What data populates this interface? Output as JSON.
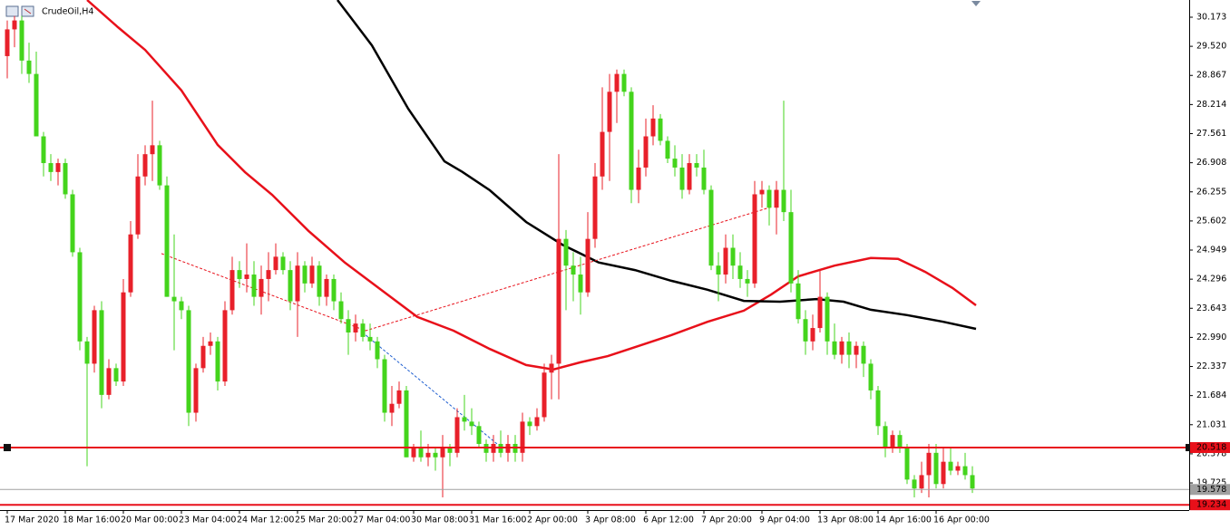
{
  "chart_data": {
    "type": "candlestick",
    "title": "CrudeOil,H4",
    "up_color": "#e8202a",
    "down_color": "#44d41c",
    "ylim": [
      19.116,
      30.559
    ],
    "yticks": [
      30.173,
      {
        "value": 29.52,
        "label": "29.520"
      },
      28.867,
      28.214,
      27.561,
      26.908,
      26.255,
      25.602,
      24.949,
      24.296,
      23.643,
      {
        "value": 22.99,
        "label": "22.990"
      },
      22.337,
      21.684,
      21.031,
      20.378,
      19.725
    ],
    "categories": [
      "17 Mar 2020",
      null,
      null,
      null,
      null,
      null,
      null,
      null,
      "18 Mar 16:00",
      null,
      null,
      null,
      null,
      null,
      null,
      null,
      "20 Mar 00:00",
      null,
      null,
      null,
      null,
      null,
      null,
      null,
      "23 Mar 04:00",
      null,
      null,
      null,
      null,
      null,
      null,
      null,
      "24 Mar 12:00",
      null,
      null,
      null,
      null,
      null,
      null,
      null,
      "25 Mar 20:00",
      null,
      null,
      null,
      null,
      null,
      null,
      null,
      "27 Mar 04:00",
      null,
      null,
      null,
      null,
      null,
      null,
      null,
      "30 Mar 08:00",
      null,
      null,
      null,
      null,
      null,
      null,
      null,
      "31 Mar 16:00",
      null,
      null,
      null,
      null,
      null,
      null,
      null,
      "2 Apr 00:00",
      null,
      null,
      null,
      null,
      null,
      null,
      null,
      "3 Apr 08:00",
      null,
      null,
      null,
      null,
      null,
      null,
      null,
      "6 Apr 12:00",
      null,
      null,
      null,
      null,
      null,
      null,
      null,
      "7 Apr 20:00",
      null,
      null,
      null,
      null,
      null,
      null,
      null,
      "9 Apr 04:00",
      null,
      null,
      null,
      null,
      null,
      null,
      null,
      "13 Apr 08:00",
      null,
      null,
      null,
      null,
      null,
      null,
      null,
      "14 Apr 16:00",
      null,
      null,
      null,
      null,
      null,
      null,
      null,
      "16 Apr 00:00",
      null,
      null,
      null,
      null,
      null
    ],
    "open": [
      29.3,
      29.9,
      30.1,
      29.2,
      28.9,
      27.5,
      26.9,
      26.7,
      26.9,
      26.2,
      24.9,
      22.9,
      22.4,
      23.6,
      21.7,
      22.3,
      22.0,
      24.0,
      25.3,
      26.6,
      27.1,
      27.3,
      26.4,
      23.9,
      23.8,
      23.6,
      21.3,
      22.3,
      22.8,
      22.9,
      22.0,
      23.6,
      24.5,
      24.3,
      24.4,
      23.9,
      24.3,
      24.5,
      24.8,
      24.5,
      23.8,
      24.6,
      24.2,
      24.6,
      23.9,
      24.3,
      23.8,
      23.4,
      23.1,
      23.3,
      23.0,
      22.9,
      22.5,
      21.3,
      21.5,
      21.8,
      20.3,
      20.5,
      20.3,
      20.4,
      20.3,
      20.5,
      20.4,
      21.2,
      21.1,
      21.0,
      20.6,
      20.4,
      20.6,
      20.4,
      20.6,
      20.4,
      21.1,
      21.0,
      21.2,
      22.2,
      22.4,
      25.2,
      24.6,
      24.4,
      24.0,
      25.2,
      26.6,
      27.6,
      28.5,
      28.9,
      28.5,
      26.3,
      26.8,
      27.5,
      27.9,
      27.4,
      27.0,
      26.8,
      26.3,
      26.9,
      26.8,
      26.3,
      24.6,
      24.4,
      25.0,
      24.6,
      24.3,
      24.2,
      26.2,
      26.3,
      25.9,
      26.3,
      25.8,
      24.2,
      23.4,
      22.9,
      23.2,
      23.9,
      22.9,
      22.6,
      22.9,
      22.6,
      22.8,
      22.4,
      21.8,
      21.0,
      20.5,
      20.8,
      20.5,
      19.8,
      19.6,
      19.9,
      20.4,
      19.7,
      20.2,
      20.0,
      20.1,
      19.9
    ],
    "high": [
      30.1,
      30.2,
      30.2,
      29.6,
      29.4,
      27.6,
      27.1,
      27.0,
      27.0,
      26.3,
      25.0,
      23.0,
      23.7,
      23.8,
      22.5,
      22.4,
      24.3,
      25.6,
      27.1,
      27.3,
      28.3,
      27.4,
      26.6,
      25.3,
      23.9,
      23.7,
      22.4,
      23.0,
      23.1,
      23.0,
      23.8,
      24.8,
      24.7,
      25.1,
      24.7,
      24.6,
      24.9,
      25.1,
      24.9,
      24.7,
      24.9,
      24.7,
      24.8,
      24.7,
      24.4,
      24.4,
      24.0,
      23.6,
      23.5,
      23.4,
      23.3,
      23.0,
      22.6,
      21.9,
      22.0,
      21.9,
      20.6,
      20.9,
      20.6,
      20.5,
      20.8,
      20.6,
      21.4,
      21.7,
      21.4,
      21.1,
      20.7,
      20.8,
      20.9,
      20.8,
      20.8,
      21.3,
      21.2,
      21.4,
      22.4,
      22.6,
      27.1,
      25.4,
      24.9,
      24.8,
      25.8,
      26.9,
      28.6,
      28.9,
      29.0,
      29.0,
      28.6,
      27.2,
      27.9,
      28.2,
      28.0,
      27.5,
      27.3,
      27.1,
      27.1,
      27.1,
      27.2,
      26.4,
      24.9,
      25.3,
      25.3,
      24.9,
      24.5,
      26.5,
      26.5,
      26.4,
      26.5,
      28.3,
      26.3,
      24.5,
      23.6,
      23.5,
      24.5,
      24.0,
      23.3,
      23.0,
      23.1,
      22.9,
      22.9,
      22.5,
      21.9,
      21.1,
      20.9,
      20.9,
      20.6,
      19.9,
      20.2,
      20.6,
      20.6,
      20.5,
      20.5,
      20.2,
      20.4,
      20.1
    ],
    "low": [
      28.8,
      29.5,
      28.9,
      28.7,
      27.5,
      26.6,
      26.5,
      26.4,
      26.1,
      24.8,
      22.7,
      20.1,
      22.2,
      21.4,
      21.6,
      21.9,
      21.9,
      23.9,
      25.2,
      26.4,
      26.5,
      26.3,
      23.9,
      22.7,
      23.4,
      21.0,
      21.1,
      22.2,
      22.6,
      21.8,
      21.9,
      23.5,
      24.1,
      24.0,
      23.7,
      23.5,
      23.8,
      24.4,
      24.4,
      23.6,
      23.0,
      24.0,
      24.1,
      23.7,
      23.7,
      23.6,
      23.3,
      22.6,
      22.9,
      22.9,
      22.7,
      22.3,
      21.1,
      21.0,
      21.4,
      20.3,
      20.2,
      20.2,
      20.1,
      20.0,
      19.4,
      20.1,
      20.3,
      20.9,
      20.8,
      20.5,
      20.2,
      20.2,
      20.3,
      20.2,
      20.2,
      20.2,
      20.8,
      20.9,
      21.1,
      21.6,
      21.6,
      23.6,
      23.8,
      23.5,
      23.9,
      25.0,
      26.3,
      26.5,
      27.8,
      28.4,
      26.0,
      26.0,
      26.6,
      27.3,
      27.3,
      26.9,
      26.6,
      26.1,
      26.2,
      26.6,
      26.2,
      24.5,
      23.8,
      24.2,
      24.3,
      24.1,
      23.9,
      24.1,
      25.9,
      25.5,
      25.3,
      25.6,
      24.0,
      23.3,
      22.6,
      22.7,
      23.1,
      22.6,
      22.5,
      22.4,
      22.3,
      22.3,
      22.1,
      21.6,
      20.8,
      20.3,
      20.4,
      20.4,
      19.7,
      19.4,
      19.5,
      19.4,
      19.6,
      19.6,
      19.9,
      19.9,
      19.8,
      19.5
    ],
    "close": [
      29.9,
      30.1,
      29.2,
      28.9,
      27.5,
      26.9,
      26.7,
      26.9,
      26.2,
      24.9,
      22.9,
      22.4,
      23.6,
      21.7,
      22.3,
      22.0,
      24.0,
      25.3,
      26.6,
      27.1,
      27.3,
      26.4,
      23.9,
      23.8,
      23.6,
      21.3,
      22.3,
      22.8,
      22.9,
      22.0,
      23.6,
      24.5,
      24.3,
      24.4,
      23.9,
      24.3,
      24.5,
      24.8,
      24.5,
      23.8,
      24.6,
      24.2,
      24.6,
      23.9,
      24.3,
      23.8,
      23.4,
      23.1,
      23.3,
      23.0,
      22.9,
      22.5,
      21.3,
      21.5,
      21.8,
      20.3,
      20.5,
      20.3,
      20.4,
      20.3,
      20.5,
      20.4,
      21.2,
      21.1,
      21.0,
      20.6,
      20.4,
      20.6,
      20.4,
      20.6,
      20.4,
      21.1,
      21.0,
      21.2,
      22.2,
      22.4,
      25.2,
      24.6,
      24.4,
      24.0,
      25.2,
      26.6,
      27.6,
      28.5,
      28.9,
      28.5,
      26.3,
      26.8,
      27.5,
      27.9,
      27.4,
      27.0,
      26.8,
      26.3,
      26.9,
      26.8,
      26.3,
      24.6,
      24.4,
      25.0,
      24.6,
      24.3,
      24.2,
      26.2,
      26.3,
      25.9,
      26.3,
      25.8,
      24.2,
      23.4,
      22.9,
      23.2,
      23.9,
      22.9,
      22.6,
      22.9,
      22.6,
      22.8,
      22.4,
      21.8,
      21.0,
      20.5,
      20.8,
      20.5,
      19.8,
      19.6,
      19.9,
      20.4,
      19.7,
      20.2,
      20.0,
      20.1,
      19.9,
      19.6
    ],
    "series": [
      {
        "color": "#e8101a",
        "x": [
          11,
          15.25,
          19,
          24,
          29,
          32.75,
          36.5,
          41.5,
          46.5,
          51.5,
          56.5,
          61.5,
          66.5,
          71.5,
          75.25,
          79,
          82.75,
          86.5,
          91.5,
          96.5,
          101.5,
          105.25,
          109,
          114,
          119,
          122.75,
          126.5,
          130.25,
          133.5
        ],
        "values": [
          30.56,
          29.95,
          29.44,
          28.53,
          27.31,
          26.7,
          26.19,
          25.38,
          24.67,
          24.06,
          23.45,
          23.14,
          22.73,
          22.37,
          22.27,
          22.43,
          22.57,
          22.77,
          23.04,
          23.34,
          23.59,
          23.95,
          24.36,
          24.6,
          24.77,
          24.75,
          24.46,
          24.1,
          23.71
        ]
      },
      {
        "color": "#000000",
        "x": [
          45.5,
          50.25,
          55.25,
          60.25,
          62.75,
          66.5,
          71.5,
          76.5,
          81.5,
          86.5,
          91.5,
          96.5,
          101.5,
          106.5,
          111.5,
          115.25,
          119,
          124,
          129,
          133.5
        ],
        "values": [
          30.56,
          29.54,
          28.12,
          26.94,
          26.7,
          26.29,
          25.58,
          25.07,
          24.67,
          24.5,
          24.26,
          24.06,
          23.81,
          23.79,
          23.85,
          23.79,
          23.61,
          23.49,
          23.34,
          23.18
        ]
      }
    ],
    "dashed_lines": [
      {
        "color": "#e8101a",
        "x": [
          21.25,
          49.4,
          105.4
        ],
        "values": [
          24.87,
          23.14,
          25.92
        ]
      },
      {
        "color": "#1f5fd0",
        "x": [
          49.4,
          67.5
        ],
        "values": [
          23.04,
          20.6
        ]
      }
    ],
    "levels": [
      {
        "value": 20.518,
        "color": "#e8101a",
        "width": 2
      },
      {
        "value": 19.234,
        "color": "#e8101a",
        "width": 2
      },
      {
        "value": 19.578,
        "color": "#a0a0a0",
        "width": 1
      }
    ]
  }
}
